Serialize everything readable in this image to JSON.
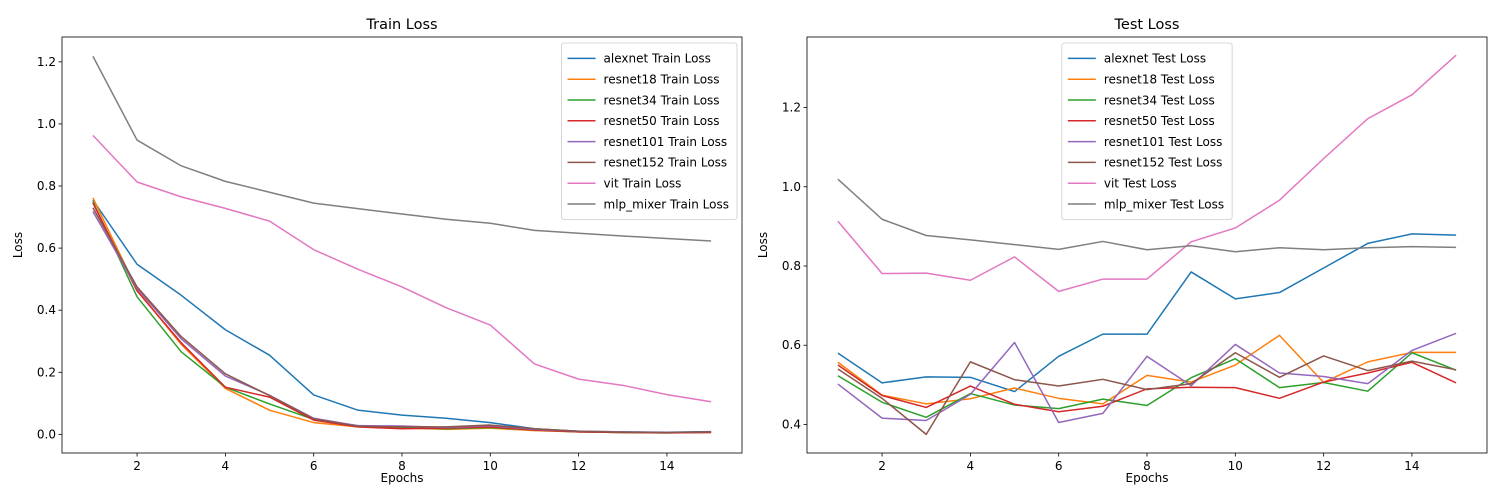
{
  "chart_data": [
    {
      "type": "line",
      "title": "Train Loss",
      "xlabel": "Epochs",
      "ylabel": "Loss",
      "xlim": [
        0.3,
        15.7
      ],
      "ylim": [
        -0.06,
        1.28
      ],
      "xticks": [
        2,
        4,
        6,
        8,
        10,
        12,
        14
      ],
      "yticks": [
        0.0,
        0.2,
        0.4,
        0.6,
        0.8,
        1.0,
        1.2
      ],
      "ytick_decimals": 1,
      "grid": false,
      "legend": "top-right",
      "x": [
        1,
        2,
        3,
        4,
        5,
        6,
        7,
        8,
        9,
        10,
        11,
        12,
        13,
        14,
        15
      ],
      "series": [
        {
          "name": "alexnet Train Loss",
          "color": "#1f77b4",
          "values": [
            0.755,
            0.548,
            0.448,
            0.337,
            0.255,
            0.127,
            0.078,
            0.062,
            0.052,
            0.038,
            0.018,
            0.01,
            0.008,
            0.007,
            0.009
          ]
        },
        {
          "name": "resnet18 Train Loss",
          "color": "#ff7f0e",
          "values": [
            0.762,
            0.465,
            0.29,
            0.148,
            0.078,
            0.038,
            0.024,
            0.022,
            0.016,
            0.02,
            0.012,
            0.008,
            0.006,
            0.005,
            0.006
          ]
        },
        {
          "name": "resnet34 Train Loss",
          "color": "#2ca02c",
          "values": [
            0.75,
            0.443,
            0.266,
            0.152,
            0.098,
            0.048,
            0.028,
            0.02,
            0.018,
            0.022,
            0.014,
            0.008,
            0.006,
            0.005,
            0.007
          ]
        },
        {
          "name": "resnet50 Train Loss",
          "color": "#d62728",
          "values": [
            0.745,
            0.462,
            0.295,
            0.152,
            0.12,
            0.046,
            0.024,
            0.018,
            0.02,
            0.024,
            0.014,
            0.008,
            0.006,
            0.005,
            0.006
          ]
        },
        {
          "name": "resnet101 Train Loss",
          "color": "#9467bd",
          "values": [
            0.718,
            0.47,
            0.308,
            0.188,
            0.126,
            0.052,
            0.028,
            0.027,
            0.022,
            0.028,
            0.016,
            0.01,
            0.008,
            0.006,
            0.008
          ]
        },
        {
          "name": "resnet152 Train Loss",
          "color": "#8c564b",
          "values": [
            0.73,
            0.475,
            0.315,
            0.195,
            0.125,
            0.05,
            0.026,
            0.024,
            0.024,
            0.03,
            0.018,
            0.01,
            0.007,
            0.006,
            0.008
          ]
        },
        {
          "name": "vit Train Loss",
          "color": "#e377c2",
          "values": [
            0.963,
            0.813,
            0.765,
            0.728,
            0.687,
            0.595,
            0.532,
            0.475,
            0.408,
            0.352,
            0.227,
            0.178,
            0.158,
            0.128,
            0.105
          ]
        },
        {
          "name": "mlp_mixer Train Loss",
          "color": "#7f7f7f",
          "values": [
            1.218,
            0.948,
            0.865,
            0.815,
            0.78,
            0.745,
            0.727,
            0.71,
            0.693,
            0.68,
            0.657,
            0.648,
            0.639,
            0.631,
            0.623
          ]
        }
      ]
    },
    {
      "type": "line",
      "title": "Test Loss",
      "xlabel": "Epochs",
      "ylabel": "Loss",
      "xlim": [
        0.3,
        15.7
      ],
      "ylim": [
        0.328,
        1.378
      ],
      "xticks": [
        2,
        4,
        6,
        8,
        10,
        12,
        14
      ],
      "yticks": [
        0.4,
        0.6,
        0.8,
        1.0,
        1.2
      ],
      "ytick_decimals": 1,
      "grid": false,
      "legend": "top-center",
      "x": [
        1,
        2,
        3,
        4,
        5,
        6,
        7,
        8,
        9,
        10,
        11,
        12,
        13,
        14,
        15
      ],
      "series": [
        {
          "name": "alexnet Test Loss",
          "color": "#1f77b4",
          "values": [
            0.58,
            0.505,
            0.52,
            0.519,
            0.483,
            0.572,
            0.628,
            0.628,
            0.785,
            0.717,
            0.733,
            0.795,
            0.857,
            0.881,
            0.878
          ]
        },
        {
          "name": "resnet18 Test Loss",
          "color": "#ff7f0e",
          "values": [
            0.557,
            0.474,
            0.452,
            0.465,
            0.492,
            0.466,
            0.452,
            0.524,
            0.507,
            0.55,
            0.625,
            0.506,
            0.558,
            0.582,
            0.582
          ]
        },
        {
          "name": "resnet34 Test Loss",
          "color": "#2ca02c",
          "values": [
            0.523,
            0.456,
            0.418,
            0.478,
            0.449,
            0.44,
            0.464,
            0.448,
            0.518,
            0.566,
            0.493,
            0.506,
            0.484,
            0.581,
            0.537
          ]
        },
        {
          "name": "resnet50 Test Loss",
          "color": "#d62728",
          "values": [
            0.55,
            0.473,
            0.443,
            0.497,
            0.451,
            0.432,
            0.446,
            0.49,
            0.494,
            0.493,
            0.466,
            0.507,
            0.53,
            0.557,
            0.505
          ]
        },
        {
          "name": "resnet101 Test Loss",
          "color": "#9467bd",
          "values": [
            0.502,
            0.416,
            0.41,
            0.476,
            0.607,
            0.405,
            0.428,
            0.572,
            0.498,
            0.602,
            0.53,
            0.521,
            0.503,
            0.587,
            0.63
          ]
        },
        {
          "name": "resnet152 Test Loss",
          "color": "#8c564b",
          "values": [
            0.54,
            0.466,
            0.375,
            0.558,
            0.513,
            0.497,
            0.514,
            0.488,
            0.503,
            0.581,
            0.519,
            0.573,
            0.536,
            0.56,
            0.538
          ]
        },
        {
          "name": "vit Test Loss",
          "color": "#e377c2",
          "values": [
            0.913,
            0.781,
            0.782,
            0.764,
            0.823,
            0.736,
            0.767,
            0.767,
            0.861,
            0.896,
            0.966,
            1.071,
            1.172,
            1.232,
            1.332
          ]
        },
        {
          "name": "mlp_mixer Test Loss",
          "color": "#7f7f7f",
          "values": [
            1.019,
            0.918,
            0.877,
            0.866,
            0.854,
            0.842,
            0.862,
            0.841,
            0.851,
            0.836,
            0.846,
            0.841,
            0.846,
            0.849,
            0.847
          ]
        }
      ]
    }
  ]
}
